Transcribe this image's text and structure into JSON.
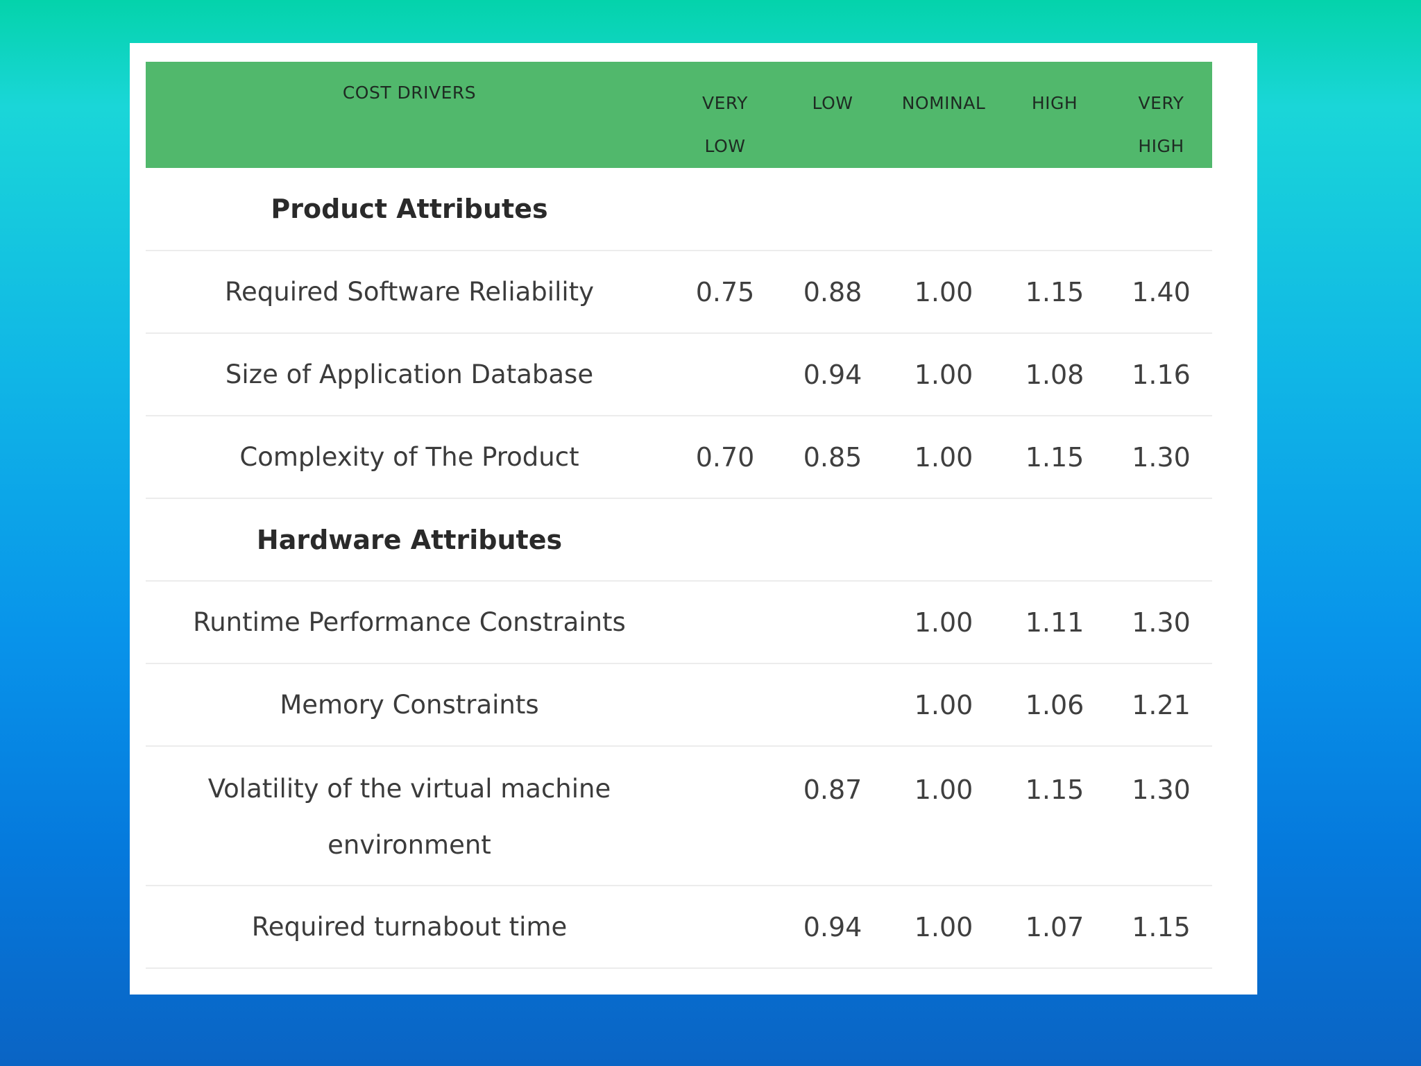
{
  "table": {
    "headers": {
      "cost_drivers": "COST DRIVERS",
      "very_low_1": "VERY",
      "very_low_2": "LOW",
      "low": "LOW",
      "nominal": "NOMINAL",
      "high": "HIGH",
      "very_high_1": "VERY",
      "very_high_2": "HIGH"
    },
    "rows": [
      {
        "type": "section",
        "label": "Product Attributes"
      },
      {
        "type": "row",
        "label": "Required Software Reliability",
        "very_low": "0.75",
        "low": "0.88",
        "nominal": "1.00",
        "high": "1.15",
        "very_high": "1.40"
      },
      {
        "type": "row",
        "label": "Size of Application Database",
        "very_low": "",
        "low": "0.94",
        "nominal": "1.00",
        "high": "1.08",
        "very_high": "1.16"
      },
      {
        "type": "row",
        "label": "Complexity of The Product",
        "very_low": "0.70",
        "low": "0.85",
        "nominal": "1.00",
        "high": "1.15",
        "very_high": "1.30"
      },
      {
        "type": "section",
        "label": "Hardware Attributes"
      },
      {
        "type": "row",
        "label": "Runtime Performance Constraints",
        "very_low": "",
        "low": "",
        "nominal": "1.00",
        "high": "1.11",
        "very_high": "1.30"
      },
      {
        "type": "row",
        "label": "Memory Constraints",
        "very_low": "",
        "low": "",
        "nominal": "1.00",
        "high": "1.06",
        "very_high": "1.21"
      },
      {
        "type": "row",
        "label": "Volatility of the virtual machine environment",
        "label_line1": "Volatility of the virtual machine",
        "label_line2": "environment",
        "very_low": "",
        "low": "0.87",
        "nominal": "1.00",
        "high": "1.15",
        "very_high": "1.30"
      },
      {
        "type": "row",
        "label": "Required turnabout time",
        "very_low": "",
        "low": "0.94",
        "nominal": "1.00",
        "high": "1.07",
        "very_high": "1.15"
      }
    ]
  }
}
